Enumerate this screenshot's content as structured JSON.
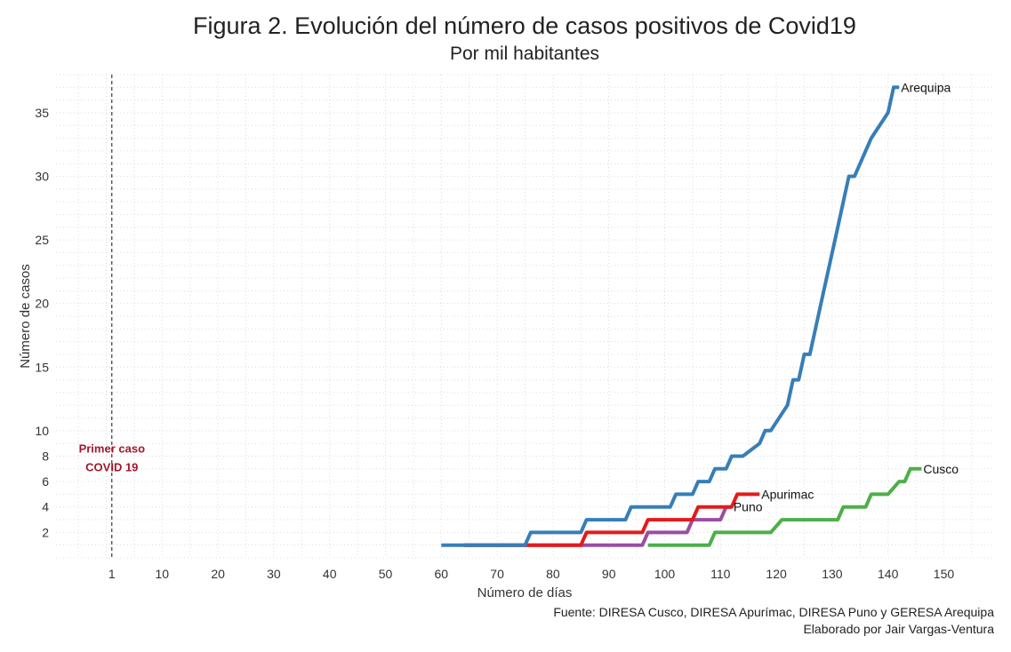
{
  "chart_data": {
    "type": "line",
    "title": "Figura 2. Evolución del número de casos positivos de Covid19",
    "subtitle": "Por mil habitantes",
    "xlabel": "Número de días",
    "ylabel": "Número de casos",
    "caption": [
      "Fuente: DIRESA Cusco, DIRESA Apurímac, DIRESA Puno y GERESA Arequipa",
      "Elaborado por Jair Vargas-Ventura"
    ],
    "x_ticks": [
      1,
      10,
      20,
      30,
      40,
      50,
      60,
      70,
      80,
      90,
      100,
      110,
      120,
      130,
      140,
      150
    ],
    "y_ticks": [
      2,
      4,
      6,
      8,
      10,
      15,
      20,
      25,
      30,
      35
    ],
    "xlim": [
      -9,
      159
    ],
    "ylim": [
      0,
      38
    ],
    "grid": true,
    "vline": {
      "x": 1,
      "style": "dashed"
    },
    "annotation": {
      "lines": [
        "Primer caso",
        "COVID 19"
      ],
      "x": 1,
      "y": 8
    },
    "series": [
      {
        "name": "Arequipa",
        "color": "#377eb8",
        "points": [
          [
            60,
            1
          ],
          [
            75,
            1
          ],
          [
            76,
            2
          ],
          [
            85,
            2
          ],
          [
            86,
            3
          ],
          [
            93,
            3
          ],
          [
            94,
            4
          ],
          [
            101,
            4
          ],
          [
            102,
            5
          ],
          [
            105,
            5
          ],
          [
            106,
            6
          ],
          [
            108,
            6
          ],
          [
            109,
            7
          ],
          [
            111,
            7
          ],
          [
            112,
            8
          ],
          [
            114,
            8
          ],
          [
            117,
            9
          ],
          [
            118,
            10
          ],
          [
            119,
            10
          ],
          [
            122,
            12
          ],
          [
            123,
            14
          ],
          [
            124,
            14
          ],
          [
            125,
            16
          ],
          [
            126,
            16
          ],
          [
            128,
            20
          ],
          [
            129,
            22
          ],
          [
            130,
            24
          ],
          [
            131,
            26
          ],
          [
            132,
            28
          ],
          [
            133,
            30
          ],
          [
            134,
            30
          ],
          [
            137,
            33
          ],
          [
            140,
            35
          ],
          [
            141,
            37
          ],
          [
            142,
            37
          ]
        ]
      },
      {
        "name": "Cusco",
        "color": "#4daf4a",
        "points": [
          [
            97,
            1
          ],
          [
            108,
            1
          ],
          [
            109,
            2
          ],
          [
            119,
            2
          ],
          [
            121,
            3
          ],
          [
            131,
            3
          ],
          [
            132,
            4
          ],
          [
            136,
            4
          ],
          [
            137,
            5
          ],
          [
            140,
            5
          ],
          [
            142,
            6
          ],
          [
            143,
            6
          ],
          [
            144,
            7
          ],
          [
            146,
            7
          ]
        ]
      },
      {
        "name": "Apurimac",
        "color": "#e41a1c",
        "points": [
          [
            64,
            1
          ],
          [
            85,
            1
          ],
          [
            86,
            2
          ],
          [
            96,
            2
          ],
          [
            97,
            3
          ],
          [
            105,
            3
          ],
          [
            106,
            4
          ],
          [
            112,
            4
          ],
          [
            113,
            5
          ],
          [
            117,
            5
          ]
        ]
      },
      {
        "name": "Puno",
        "color": "#984ea3",
        "points": [
          [
            64,
            1
          ],
          [
            96,
            1
          ],
          [
            97,
            2
          ],
          [
            104,
            2
          ],
          [
            105,
            3
          ],
          [
            110,
            3
          ],
          [
            111,
            4
          ],
          [
            112,
            4
          ]
        ]
      }
    ]
  }
}
